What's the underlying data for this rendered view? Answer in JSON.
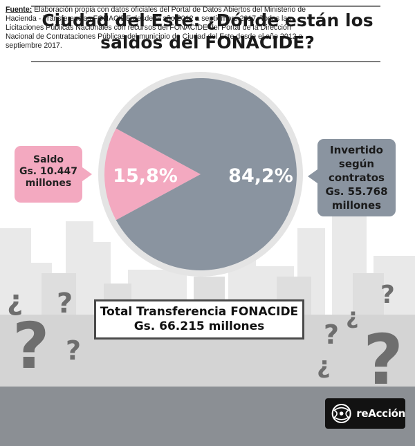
{
  "title": {
    "line1": "Ciudad del Este: ¿Dónde están los",
    "line2": "saldos del FONACIDE?"
  },
  "chart_data": {
    "type": "pie",
    "labels": [
      "Saldo",
      "Invertido según contratos"
    ],
    "values": [
      15.8,
      84.2
    ],
    "amounts_millions_gs": [
      10447,
      55768
    ],
    "data_labels": [
      "15,8%",
      "84,2%"
    ],
    "colors": [
      "#f3a9c0",
      "#8a94a0"
    ]
  },
  "callouts": {
    "saldo": {
      "l1": "Saldo",
      "l2": "Gs. 10.447",
      "l3": "millones"
    },
    "invertido": {
      "l1": "Invertido",
      "l2": "según",
      "l3": "contratos",
      "l4": "Gs. 55.768",
      "l5": "millones"
    }
  },
  "total": {
    "line1": "Total Transferencia FONACIDE",
    "line2": "Gs. 66.215 millones"
  },
  "footer": {
    "label": "Fuente:",
    "text": " Elaboración propia con datos oficiales del Portal de Datos Abiertos del Ministerio de Hacienda - Transferencias FONACIDE desde el año 2012 a septiembre 2017. Todas las Licitaciones Públicas Nacionales con recursos del FONACIDE del Portal de la Dirección Nacional de Contrataciones Públicas del municipio de Ciudad del Este desde el año 2012 a septiembre 2017."
  },
  "logo": {
    "text": "reAcción",
    "icon": "reaccion-logo-icon"
  },
  "decorations": {
    "icons": [
      "question-mark-icon",
      "inverted-question-mark-icon"
    ],
    "background": "city-skyline"
  }
}
